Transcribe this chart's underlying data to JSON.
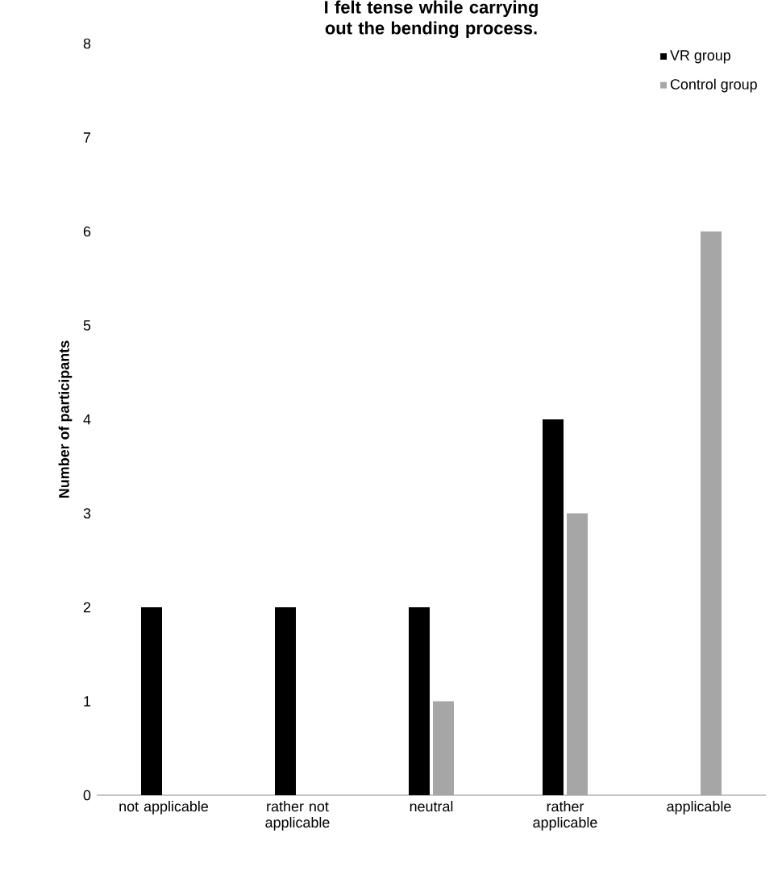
{
  "chart_data": {
    "type": "bar",
    "title": "I felt tense while carrying out the bending process.",
    "ylabel": "Number of participants",
    "categories": [
      "not applicable",
      "rather not applicable",
      "neutral",
      "rather applicable",
      "applicable"
    ],
    "series": [
      {
        "name": "VR group",
        "color": "#000000",
        "values": [
          2,
          2,
          2,
          4,
          0
        ]
      },
      {
        "name": "Control group",
        "color": "#a6a6a6",
        "values": [
          0,
          0,
          1,
          3,
          6
        ]
      }
    ],
    "ylim": [
      0,
      8
    ],
    "yticks": [
      0,
      1,
      2,
      3,
      4,
      5,
      6,
      7,
      8
    ],
    "legend": "top right"
  }
}
